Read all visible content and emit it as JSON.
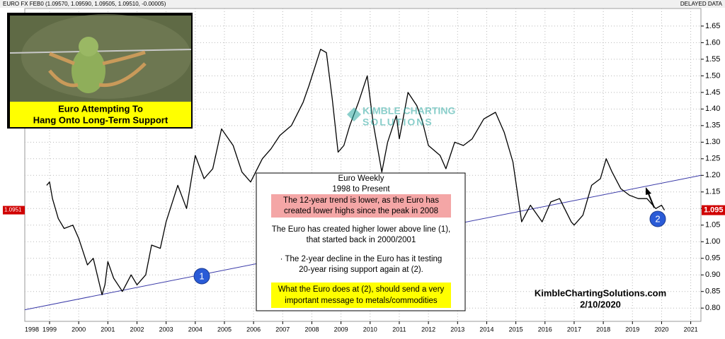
{
  "header": {
    "ticker_line": "EURO FX FEB0 (1.09570, 1.09590, 1.09505, 1.09510, -0.00005)",
    "status": "DELAYED DATA"
  },
  "chart_data": {
    "type": "line",
    "series": [
      {
        "color": "#000000",
        "x": [
          1998.9,
          1999.0,
          1999.1,
          1999.3,
          1999.5,
          1999.8,
          2000.0,
          2000.3,
          2000.5,
          2000.8,
          2000.9,
          2001.0,
          2001.2,
          2001.5,
          2001.8,
          2002.0,
          2002.3,
          2002.5,
          2002.8,
          2003.0,
          2003.4,
          2003.7,
          2004.0,
          2004.3,
          2004.6,
          2004.9,
          2005.3,
          2005.6,
          2005.9,
          2006.3,
          2006.6,
          2006.9,
          2007.3,
          2007.7,
          2007.9,
          2008.3,
          2008.5,
          2008.7,
          2008.9,
          2009.1,
          2009.3,
          2009.6,
          2009.9,
          2010.1,
          2010.4,
          2010.6,
          2010.9,
          2011.0,
          2011.3,
          2011.6,
          2011.8,
          2012.0,
          2012.4,
          2012.6,
          2012.9,
          2013.2,
          2013.5,
          2013.9,
          2014.3,
          2014.6,
          2014.9,
          2015.1,
          2015.2,
          2015.5,
          2015.9,
          2016.2,
          2016.5,
          2016.9,
          2017.0,
          2017.3,
          2017.6,
          2017.9,
          2018.1,
          2018.3,
          2018.6,
          2018.9,
          2019.2,
          2019.5,
          2019.8,
          2020.0,
          2020.1
        ],
        "values": [
          1.17,
          1.18,
          1.13,
          1.07,
          1.04,
          1.05,
          1.01,
          0.93,
          0.95,
          0.84,
          0.87,
          0.94,
          0.89,
          0.85,
          0.9,
          0.87,
          0.9,
          0.99,
          0.98,
          1.06,
          1.17,
          1.1,
          1.26,
          1.19,
          1.22,
          1.34,
          1.29,
          1.21,
          1.18,
          1.25,
          1.28,
          1.32,
          1.35,
          1.42,
          1.47,
          1.58,
          1.57,
          1.43,
          1.27,
          1.29,
          1.35,
          1.42,
          1.5,
          1.36,
          1.21,
          1.3,
          1.38,
          1.31,
          1.45,
          1.41,
          1.36,
          1.29,
          1.26,
          1.22,
          1.3,
          1.29,
          1.31,
          1.37,
          1.39,
          1.33,
          1.24,
          1.12,
          1.06,
          1.11,
          1.06,
          1.12,
          1.13,
          1.06,
          1.05,
          1.08,
          1.17,
          1.19,
          1.25,
          1.21,
          1.16,
          1.14,
          1.13,
          1.13,
          1.1,
          1.11,
          1.095
        ]
      }
    ],
    "support_line": {
      "color": "#3a3aa8",
      "x": [
        1998.15,
        2021.35
      ],
      "values": [
        0.795,
        1.2
      ]
    },
    "last_price": {
      "value": 1.0951,
      "label": "1.095"
    },
    "xlim": [
      1998.15,
      2021.35
    ],
    "xticks": [
      1998,
      1999,
      2000,
      2001,
      2002,
      2003,
      2004,
      2005,
      2006,
      2007,
      2008,
      2009,
      2010,
      2011,
      2012,
      2013,
      2014,
      2015,
      2016,
      2017,
      2018,
      2019,
      2020,
      2021
    ],
    "ylim": [
      0.76,
      1.703
    ],
    "yticks": [
      {
        "value": 0.8,
        "label": "0.80"
      },
      0.85,
      {
        "value": 0.9,
        "label": "0.90"
      },
      0.95,
      {
        "value": 1,
        "label": "1.00"
      },
      1.05,
      {
        "value": 1.1,
        "label": "1.10"
      },
      1.15,
      {
        "value": 1.2,
        "label": "1.20"
      },
      1.25,
      {
        "value": 1.3,
        "label": "1.30"
      },
      1.35,
      {
        "value": 1.4,
        "label": "1.40"
      },
      1.45,
      {
        "value": 1.5,
        "label": "1.50"
      },
      1.55,
      {
        "value": 1.6,
        "label": "1.60"
      },
      1.65
    ],
    "grid": true
  },
  "photo_caption": [
    "Euro Attempting To",
    "Hang Onto Long-Term Support"
  ],
  "watermark": [
    "KIMBLE CHARTING",
    "SOLUTIONS"
  ],
  "notes": {
    "title": [
      "Euro Weekly",
      "1998 to Present"
    ],
    "trend": [
      "The 12-year trend is lower, as the Euro has",
      "created lower highs since the peak in 2008"
    ],
    "line": [
      "The Euro has created higher lower above line (1),",
      "that started back in 2000/2001"
    ],
    "decline": [
      "· The 2-year decline in the Euro has it testing",
      "20-year rising support again at (2)."
    ],
    "message": [
      "What the Euro does at (2), should send a very",
      "important message to metals/commodities"
    ]
  },
  "markers": [
    "1",
    "2"
  ],
  "credit": [
    "KimbleChartingSolutions.com",
    "2/10/2020"
  ]
}
